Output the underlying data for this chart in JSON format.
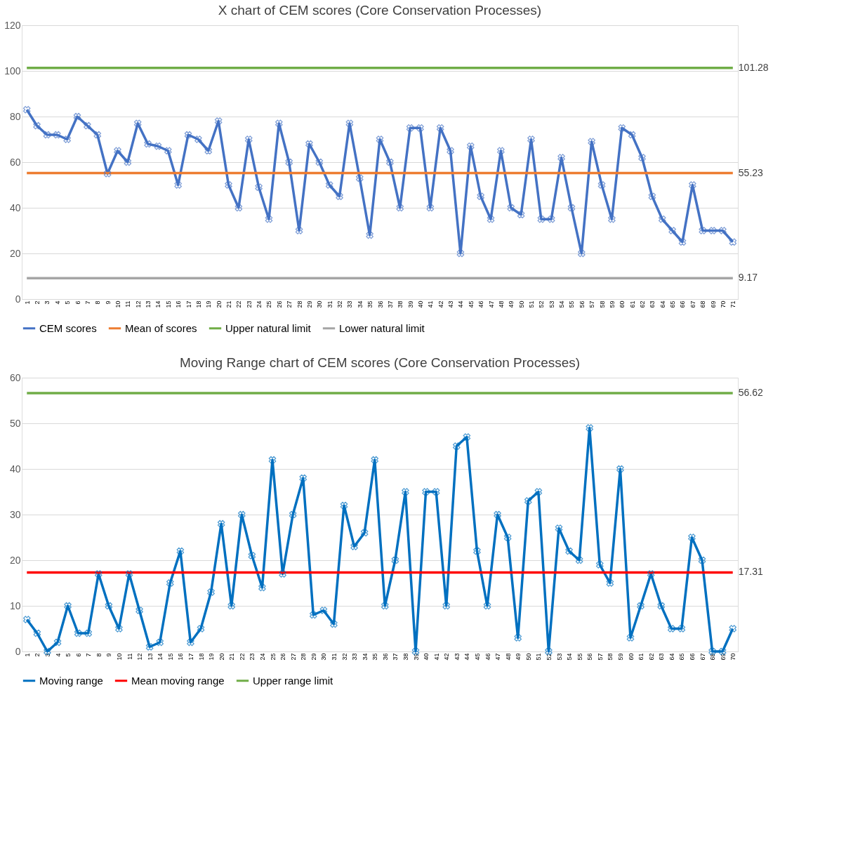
{
  "chart_data": [
    {
      "type": "line",
      "title": "X chart of CEM scores (Core Conservation Processes)",
      "categories": [
        "1",
        "2",
        "3",
        "4",
        "5",
        "6",
        "7",
        "8",
        "9",
        "10",
        "11",
        "12",
        "13",
        "14",
        "15",
        "16",
        "17",
        "18",
        "19",
        "20",
        "21",
        "22",
        "23",
        "24",
        "25",
        "26",
        "27",
        "28",
        "29",
        "30",
        "31",
        "32",
        "33",
        "34",
        "35",
        "36",
        "37",
        "38",
        "39",
        "40",
        "41",
        "42",
        "43",
        "44",
        "45",
        "46",
        "47",
        "48",
        "49",
        "50",
        "51",
        "52",
        "53",
        "54",
        "55",
        "56",
        "57",
        "58",
        "59",
        "60",
        "61",
        "62",
        "63",
        "64",
        "65",
        "66",
        "67",
        "68",
        "69",
        "70",
        "71"
      ],
      "ylim": [
        0,
        120
      ],
      "yticks": [
        0,
        20,
        40,
        60,
        80,
        100,
        120
      ],
      "grid": "y",
      "legend": "bottom",
      "series": [
        {
          "name": "CEM scores",
          "color": "#4472c4",
          "marker": "cross",
          "values": [
            83,
            76,
            72,
            72,
            70,
            80,
            76,
            72,
            55,
            65,
            60,
            77,
            68,
            67,
            65,
            50,
            72,
            70,
            65,
            78,
            50,
            40,
            70,
            49,
            35,
            77,
            60,
            30,
            68,
            60,
            50,
            45,
            77,
            53,
            28,
            70,
            60,
            40,
            75,
            75,
            40,
            75,
            65,
            20,
            67,
            45,
            35,
            65,
            40,
            37,
            70,
            35,
            35,
            62,
            40,
            20,
            69,
            50,
            35,
            75,
            72,
            62,
            45,
            35,
            30,
            25,
            50,
            30,
            30,
            30,
            25
          ]
        },
        {
          "name": "Mean of scores",
          "color": "#ed7d31",
          "marker": "none",
          "values": [
            55.23,
            55.23,
            55.23,
            55.23,
            55.23,
            55.23,
            55.23,
            55.23,
            55.23,
            55.23,
            55.23,
            55.23,
            55.23,
            55.23,
            55.23,
            55.23,
            55.23,
            55.23,
            55.23,
            55.23,
            55.23,
            55.23,
            55.23,
            55.23,
            55.23,
            55.23,
            55.23,
            55.23,
            55.23,
            55.23,
            55.23,
            55.23,
            55.23,
            55.23,
            55.23,
            55.23,
            55.23,
            55.23,
            55.23,
            55.23,
            55.23,
            55.23,
            55.23,
            55.23,
            55.23,
            55.23,
            55.23,
            55.23,
            55.23,
            55.23,
            55.23,
            55.23,
            55.23,
            55.23,
            55.23,
            55.23,
            55.23,
            55.23,
            55.23,
            55.23,
            55.23,
            55.23,
            55.23,
            55.23,
            55.23,
            55.23,
            55.23,
            55.23,
            55.23,
            55.23,
            55.23
          ],
          "value_labels": [
            null,
            null,
            null,
            null,
            null,
            null,
            null,
            null,
            null,
            null,
            null,
            null,
            null,
            null,
            null,
            null,
            null,
            null,
            null,
            null,
            null,
            null,
            null,
            null,
            null,
            null,
            null,
            null,
            null,
            null,
            null,
            null,
            null,
            null,
            null,
            null,
            null,
            null,
            null,
            null,
            null,
            null,
            null,
            null,
            null,
            null,
            null,
            null,
            null,
            null,
            null,
            null,
            null,
            null,
            null,
            null,
            null,
            null,
            null,
            null,
            null,
            null,
            null,
            null,
            null,
            null,
            null,
            null,
            null,
            null,
            "55.23"
          ]
        },
        {
          "name": "Upper natural limit",
          "color": "#70ad47",
          "marker": "none",
          "values": [
            101.28,
            101.28,
            101.28,
            101.28,
            101.28,
            101.28,
            101.28,
            101.28,
            101.28,
            101.28,
            101.28,
            101.28,
            101.28,
            101.28,
            101.28,
            101.28,
            101.28,
            101.28,
            101.28,
            101.28,
            101.28,
            101.28,
            101.28,
            101.28,
            101.28,
            101.28,
            101.28,
            101.28,
            101.28,
            101.28,
            101.28,
            101.28,
            101.28,
            101.28,
            101.28,
            101.28,
            101.28,
            101.28,
            101.28,
            101.28,
            101.28,
            101.28,
            101.28,
            101.28,
            101.28,
            101.28,
            101.28,
            101.28,
            101.28,
            101.28,
            101.28,
            101.28,
            101.28,
            101.28,
            101.28,
            101.28,
            101.28,
            101.28,
            101.28,
            101.28,
            101.28,
            101.28,
            101.28,
            101.28,
            101.28,
            101.28,
            101.28,
            101.28,
            101.28,
            101.28,
            101.28
          ],
          "value_labels": [
            null,
            null,
            null,
            null,
            null,
            null,
            null,
            null,
            null,
            null,
            null,
            null,
            null,
            null,
            null,
            null,
            null,
            null,
            null,
            null,
            null,
            null,
            null,
            null,
            null,
            null,
            null,
            null,
            null,
            null,
            null,
            null,
            null,
            null,
            null,
            null,
            null,
            null,
            null,
            null,
            null,
            null,
            null,
            null,
            null,
            null,
            null,
            null,
            null,
            null,
            null,
            null,
            null,
            null,
            null,
            null,
            null,
            null,
            null,
            null,
            null,
            null,
            null,
            null,
            null,
            null,
            null,
            null,
            null,
            null,
            "101.28"
          ]
        },
        {
          "name": "Lower natural limit",
          "color": "#a5a5a5",
          "marker": "none",
          "values": [
            9.17,
            9.17,
            9.17,
            9.17,
            9.17,
            9.17,
            9.17,
            9.17,
            9.17,
            9.17,
            9.17,
            9.17,
            9.17,
            9.17,
            9.17,
            9.17,
            9.17,
            9.17,
            9.17,
            9.17,
            9.17,
            9.17,
            9.17,
            9.17,
            9.17,
            9.17,
            9.17,
            9.17,
            9.17,
            9.17,
            9.17,
            9.17,
            9.17,
            9.17,
            9.17,
            9.17,
            9.17,
            9.17,
            9.17,
            9.17,
            9.17,
            9.17,
            9.17,
            9.17,
            9.17,
            9.17,
            9.17,
            9.17,
            9.17,
            9.17,
            9.17,
            9.17,
            9.17,
            9.17,
            9.17,
            9.17,
            9.17,
            9.17,
            9.17,
            9.17,
            9.17,
            9.17,
            9.17,
            9.17,
            9.17,
            9.17,
            9.17,
            9.17,
            9.17,
            9.17,
            9.17
          ],
          "value_labels": [
            null,
            null,
            null,
            null,
            null,
            null,
            null,
            null,
            null,
            null,
            null,
            null,
            null,
            null,
            null,
            null,
            null,
            null,
            null,
            null,
            null,
            null,
            null,
            null,
            null,
            null,
            null,
            null,
            null,
            null,
            null,
            null,
            null,
            null,
            null,
            null,
            null,
            null,
            null,
            null,
            null,
            null,
            null,
            null,
            null,
            null,
            null,
            null,
            null,
            null,
            null,
            null,
            null,
            null,
            null,
            null,
            null,
            null,
            null,
            null,
            null,
            null,
            null,
            null,
            null,
            null,
            null,
            null,
            null,
            null,
            "9.17"
          ]
        }
      ]
    },
    {
      "type": "line",
      "title": "Moving Range chart of CEM scores (Core Conservation Processes)",
      "categories": [
        "1",
        "2",
        "3",
        "4",
        "5",
        "6",
        "7",
        "8",
        "9",
        "10",
        "11",
        "12",
        "13",
        "14",
        "15",
        "16",
        "17",
        "18",
        "19",
        "20",
        "21",
        "22",
        "23",
        "24",
        "25",
        "26",
        "27",
        "28",
        "29",
        "30",
        "31",
        "32",
        "33",
        "34",
        "35",
        "36",
        "37",
        "38",
        "39",
        "40",
        "41",
        "42",
        "43",
        "44",
        "45",
        "46",
        "47",
        "48",
        "49",
        "50",
        "51",
        "52",
        "53",
        "54",
        "55",
        "56",
        "57",
        "58",
        "59",
        "60",
        "61",
        "62",
        "63",
        "64",
        "65",
        "66",
        "67",
        "68",
        "69",
        "70"
      ],
      "ylim": [
        0,
        60
      ],
      "yticks": [
        0,
        10,
        20,
        30,
        40,
        50,
        60
      ],
      "grid": "y",
      "legend": "bottom",
      "series": [
        {
          "name": "Moving range",
          "color": "#0070c0",
          "marker": "cross",
          "values": [
            7,
            4,
            0,
            2,
            10,
            4,
            4,
            17,
            10,
            5,
            17,
            9,
            1,
            2,
            15,
            22,
            2,
            5,
            13,
            28,
            10,
            30,
            21,
            14,
            42,
            17,
            30,
            38,
            8,
            9,
            6,
            32,
            23,
            26,
            42,
            10,
            20,
            35,
            0,
            35,
            35,
            10,
            45,
            47,
            22,
            10,
            30,
            25,
            3,
            33,
            35,
            0,
            27,
            22,
            20,
            49,
            19,
            15,
            40,
            3,
            10,
            17,
            10,
            5,
            5,
            25,
            20,
            0,
            0,
            5
          ]
        },
        {
          "name": "Mean moving range",
          "color": "#ff0000",
          "marker": "none",
          "values": [
            17.31,
            17.31,
            17.31,
            17.31,
            17.31,
            17.31,
            17.31,
            17.31,
            17.31,
            17.31,
            17.31,
            17.31,
            17.31,
            17.31,
            17.31,
            17.31,
            17.31,
            17.31,
            17.31,
            17.31,
            17.31,
            17.31,
            17.31,
            17.31,
            17.31,
            17.31,
            17.31,
            17.31,
            17.31,
            17.31,
            17.31,
            17.31,
            17.31,
            17.31,
            17.31,
            17.31,
            17.31,
            17.31,
            17.31,
            17.31,
            17.31,
            17.31,
            17.31,
            17.31,
            17.31,
            17.31,
            17.31,
            17.31,
            17.31,
            17.31,
            17.31,
            17.31,
            17.31,
            17.31,
            17.31,
            17.31,
            17.31,
            17.31,
            17.31,
            17.31,
            17.31,
            17.31,
            17.31,
            17.31,
            17.31,
            17.31,
            17.31,
            17.31,
            17.31,
            17.31
          ],
          "value_labels": [
            null,
            null,
            null,
            null,
            null,
            null,
            null,
            null,
            null,
            null,
            null,
            null,
            null,
            null,
            null,
            null,
            null,
            null,
            null,
            null,
            null,
            null,
            null,
            null,
            null,
            null,
            null,
            null,
            null,
            null,
            null,
            null,
            null,
            null,
            null,
            null,
            null,
            null,
            null,
            null,
            null,
            null,
            null,
            null,
            null,
            null,
            null,
            null,
            null,
            null,
            null,
            null,
            null,
            null,
            null,
            null,
            null,
            null,
            null,
            null,
            null,
            null,
            null,
            null,
            null,
            null,
            null,
            null,
            null,
            "17.31"
          ]
        },
        {
          "name": "Upper range limit",
          "color": "#70ad47",
          "marker": "none",
          "values": [
            56.62,
            56.62,
            56.62,
            56.62,
            56.62,
            56.62,
            56.62,
            56.62,
            56.62,
            56.62,
            56.62,
            56.62,
            56.62,
            56.62,
            56.62,
            56.62,
            56.62,
            56.62,
            56.62,
            56.62,
            56.62,
            56.62,
            56.62,
            56.62,
            56.62,
            56.62,
            56.62,
            56.62,
            56.62,
            56.62,
            56.62,
            56.62,
            56.62,
            56.62,
            56.62,
            56.62,
            56.62,
            56.62,
            56.62,
            56.62,
            56.62,
            56.62,
            56.62,
            56.62,
            56.62,
            56.62,
            56.62,
            56.62,
            56.62,
            56.62,
            56.62,
            56.62,
            56.62,
            56.62,
            56.62,
            56.62,
            56.62,
            56.62,
            56.62,
            56.62,
            56.62,
            56.62,
            56.62,
            56.62,
            56.62,
            56.62,
            56.62,
            56.62,
            56.62,
            56.62
          ],
          "value_labels": [
            null,
            null,
            null,
            null,
            null,
            null,
            null,
            null,
            null,
            null,
            null,
            null,
            null,
            null,
            null,
            null,
            null,
            null,
            null,
            null,
            null,
            null,
            null,
            null,
            null,
            null,
            null,
            null,
            null,
            null,
            null,
            null,
            null,
            null,
            null,
            null,
            null,
            null,
            null,
            null,
            null,
            null,
            null,
            null,
            null,
            null,
            null,
            null,
            null,
            null,
            null,
            null,
            null,
            null,
            null,
            null,
            null,
            null,
            null,
            null,
            null,
            null,
            null,
            null,
            null,
            null,
            null,
            null,
            null,
            "56.62"
          ]
        }
      ]
    }
  ]
}
